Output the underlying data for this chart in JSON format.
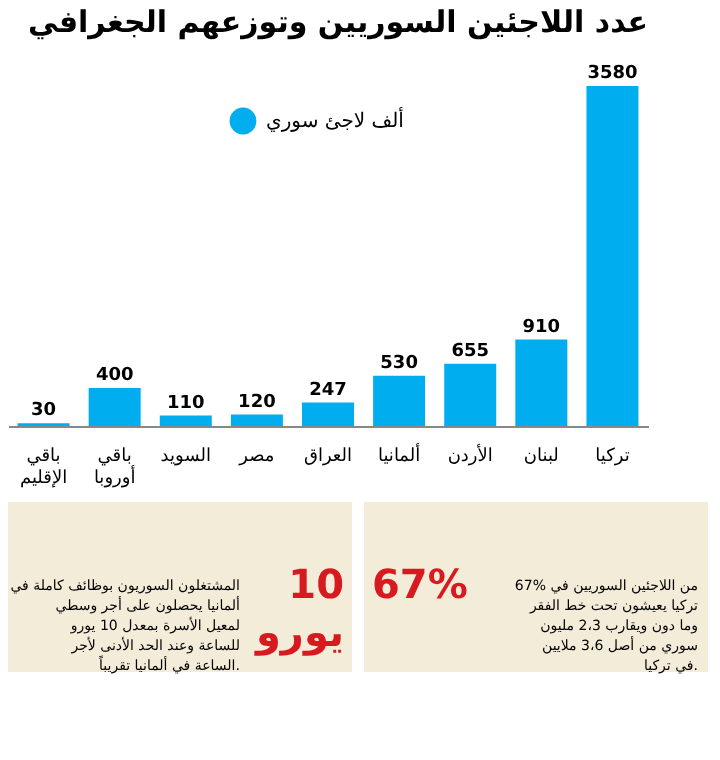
{
  "chart_data": {
    "type": "bar",
    "title": "عدد اللاجئين السوريين وتوزعهم الجغرافي",
    "categories": [
      "باقي الإقليم",
      "باقي أوروبا",
      "السويد",
      "مصر",
      "العراق",
      "ألمانيا",
      "الأردن",
      "لبنان",
      "تركيا"
    ],
    "series": [
      {
        "name": "ألف لاجئ سوري",
        "color": "#00aeef",
        "values": [
          30,
          400,
          110,
          120,
          247,
          530,
          655,
          910,
          3580
        ]
      }
    ],
    "data_labels": true,
    "legend": "top",
    "grid": false,
    "annotations": [
      "67%",
      "67% من اللاجئين السوريين في تركيا يعيشون تحت خط الفقر وما دون ويقارب 2،3 مليون سوري من أصل 3،6 ملايين في تركيا.",
      "10 يورو",
      "المشتغلون السوريون بوظائف كاملة في ألمانيا يحصلون على أجر وسطي لمعيل الأسرة بمعدل 10 يورو للساعة وعند الحد الأدنى لأجر الساعة في ألمانيا تقريباً."
    ]
  }
}
